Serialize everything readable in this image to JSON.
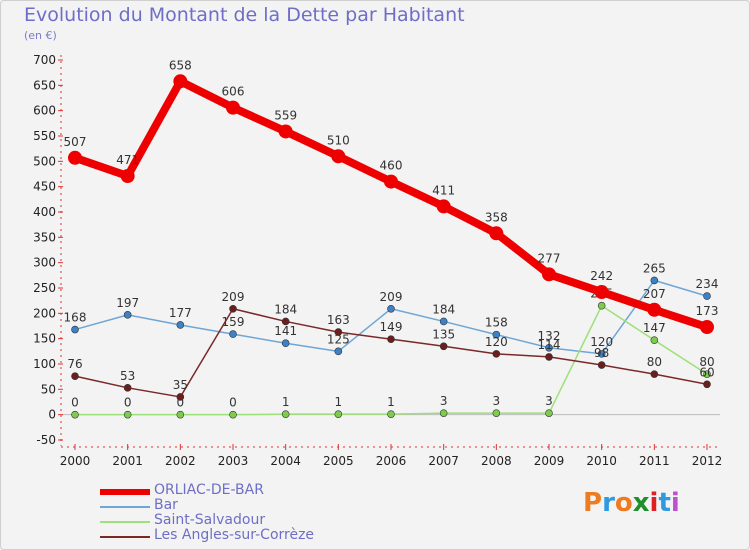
{
  "header": {
    "title": "Evolution du Montant de la Dette par Habitant",
    "unit": "(en €)"
  },
  "logo": {
    "text": "Proxiti",
    "colors": [
      "#ee7b20",
      "#2e9be0",
      "#ee7b20",
      "#1f8f2a",
      "#e02020",
      "#2e9be0",
      "#c04fd0"
    ]
  },
  "chart_data": {
    "type": "line",
    "title": "Evolution du Montant de la Dette par Habitant",
    "subtitle": "(en €)",
    "xlabel": "",
    "ylabel": "",
    "x": [
      "2000",
      "2001",
      "2002",
      "2003",
      "2004",
      "2005",
      "2006",
      "2007",
      "2008",
      "2009",
      "2010",
      "2011",
      "2012"
    ],
    "ylim": [
      -50,
      700
    ],
    "yticks": [
      -50,
      0,
      50,
      100,
      150,
      200,
      250,
      300,
      350,
      400,
      450,
      500,
      550,
      600,
      650,
      700
    ],
    "grid": false,
    "legend_position": "bottom-left",
    "series": [
      {
        "name": "ORLIAC-DE-BAR",
        "color": "#ee0000",
        "marker_color": "#ee0000",
        "emphasis": "thick",
        "values": [
          507,
          471,
          658,
          606,
          559,
          510,
          460,
          411,
          358,
          277,
          242,
          207,
          173
        ],
        "labels": [
          "507",
          "471",
          "658",
          "606",
          "559",
          "510",
          "460",
          "411",
          "358",
          "277",
          "242",
          "207",
          "173"
        ]
      },
      {
        "name": "Bar",
        "color": "#6fa6d6",
        "marker_color": "#3d82c8",
        "emphasis": "thin",
        "values": [
          168,
          197,
          177,
          159,
          141,
          125,
          209,
          184,
          158,
          132,
          120,
          265,
          234
        ],
        "labels": [
          "168",
          "197",
          "177",
          "159",
          "141",
          "125",
          "209",
          "184",
          "158",
          "132",
          "120",
          "265",
          "234"
        ]
      },
      {
        "name": "Saint-Salvadour",
        "color": "#9ee07a",
        "marker_color": "#7dcc4e",
        "emphasis": "thin",
        "values": [
          0,
          0,
          0,
          0,
          1,
          1,
          1,
          3,
          3,
          3,
          215,
          147,
          80
        ],
        "labels": [
          "0",
          "0",
          "0",
          "0",
          "1",
          "1",
          "1",
          "3",
          "3",
          "3",
          "215",
          "147",
          "80"
        ]
      },
      {
        "name": "Les Angles-sur-Corrèze",
        "color": "#7a2828",
        "marker_color": "#6a1e1e",
        "emphasis": "thin",
        "values": [
          76,
          53,
          35,
          209,
          184,
          163,
          149,
          135,
          120,
          114,
          98,
          80,
          60
        ],
        "labels": [
          "76",
          "53",
          "35",
          "209",
          "184",
          "163",
          "149",
          "135",
          "120",
          "114",
          "98",
          "80",
          "60"
        ]
      }
    ]
  }
}
